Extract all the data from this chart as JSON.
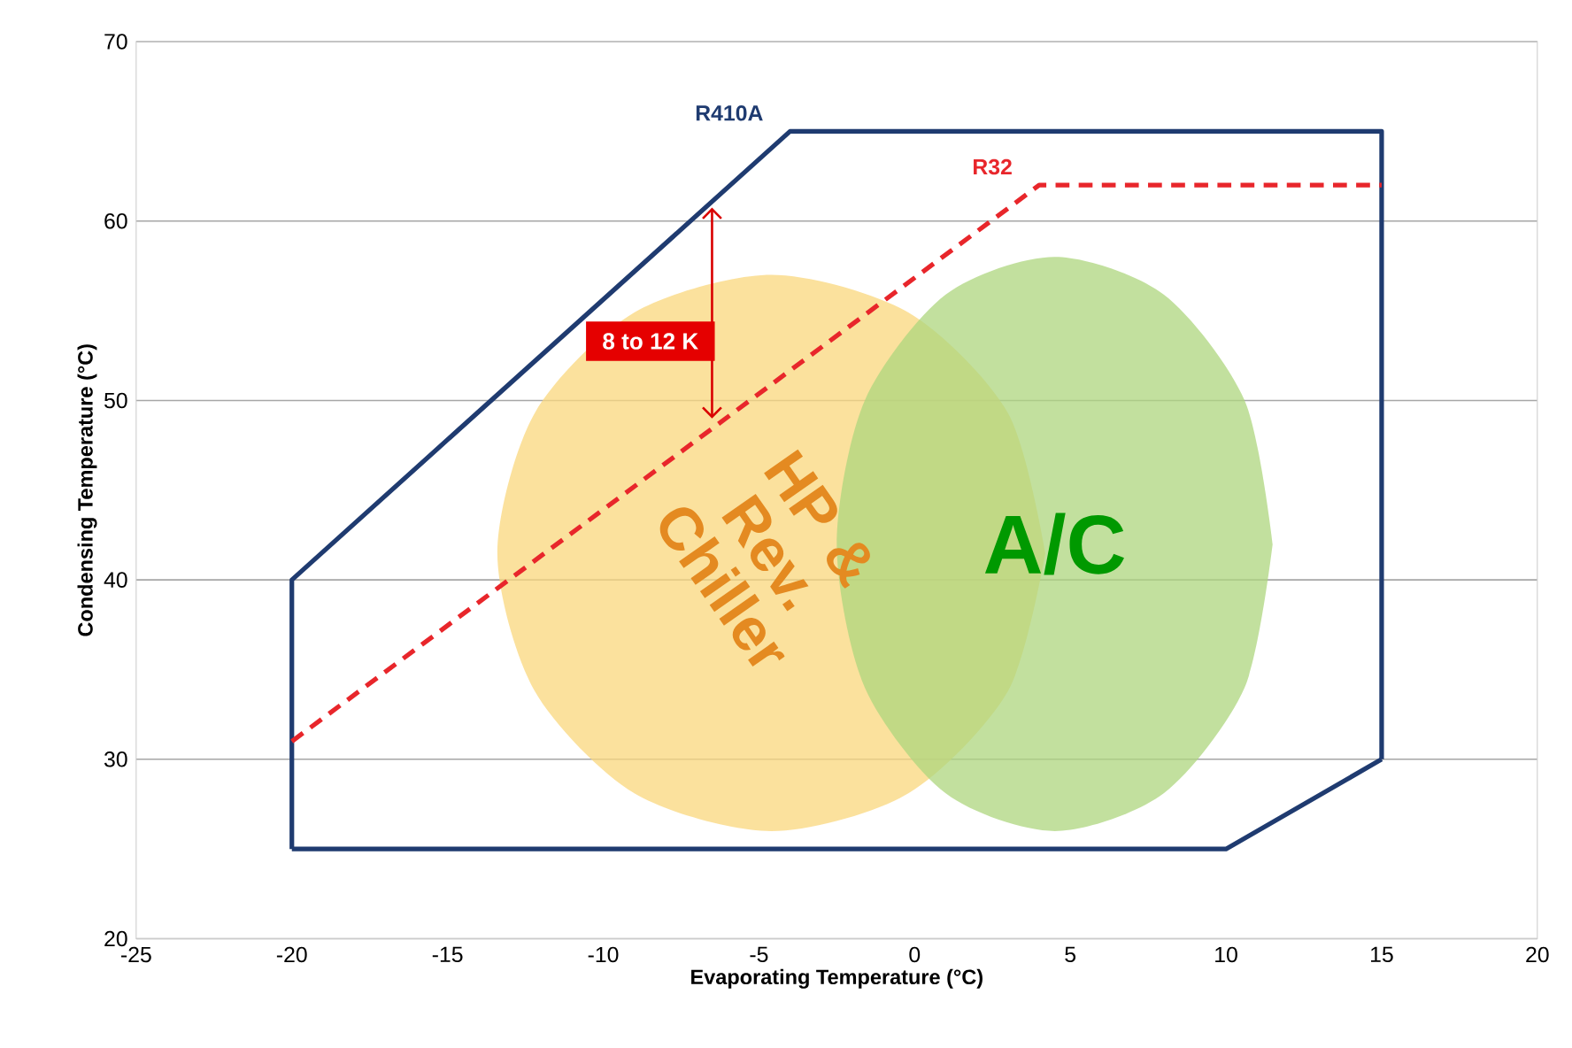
{
  "chart_data": {
    "type": "line",
    "xlabel": "Evaporating Temperature (°C)",
    "ylabel": "Condensing Temperature (°C)",
    "xlim": [
      -25,
      20
    ],
    "xticks": [
      -25,
      -20,
      -15,
      -10,
      -5,
      0,
      5,
      10,
      15,
      20
    ],
    "ylim": [
      20,
      70
    ],
    "yticks": [
      20,
      30,
      40,
      50,
      60,
      70
    ],
    "grid": "y",
    "series": [
      {
        "type": "area",
        "name": "HP & Rev. Chiller",
        "color": "#f9d77c",
        "x": [
          4.2,
          3.0,
          -0.2,
          -4.6,
          -9.0,
          -12.2,
          -13.4,
          -12.2,
          -9.0,
          -4.6,
          -0.2,
          3.0
        ],
        "values": [
          41.5,
          49.3,
          54.9,
          57.0,
          54.9,
          49.3,
          41.5,
          33.8,
          28.1,
          26.0,
          28.1,
          33.8
        ]
      },
      {
        "type": "area",
        "name": "A/C",
        "color": "#aed67e",
        "x": [
          11.5,
          10.6,
          8.0,
          4.5,
          1.0,
          -1.6,
          -2.5,
          -1.6,
          1.0,
          4.5,
          8.0,
          10.6
        ],
        "values": [
          42,
          50,
          55.9,
          58,
          55.9,
          50,
          42,
          34,
          28.1,
          26,
          28.1,
          34
        ]
      },
      {
        "name": "R410A",
        "color": "#1f3b70",
        "line_style": "solid",
        "x": [
          -20,
          -20,
          -4,
          15,
          15
        ],
        "values": [
          25,
          40,
          65,
          65,
          30
        ]
      },
      {
        "color": "#1f3b70",
        "line_style": "solid",
        "x": [
          -20,
          10,
          15
        ],
        "values": [
          25,
          25,
          30
        ]
      },
      {
        "name": "R32",
        "color": "#e8262b",
        "line_style": "dashed",
        "x": [
          -20,
          4,
          15
        ],
        "values": [
          31,
          62,
          62
        ]
      }
    ],
    "annotations": [
      "8 to 12 K"
    ]
  }
}
